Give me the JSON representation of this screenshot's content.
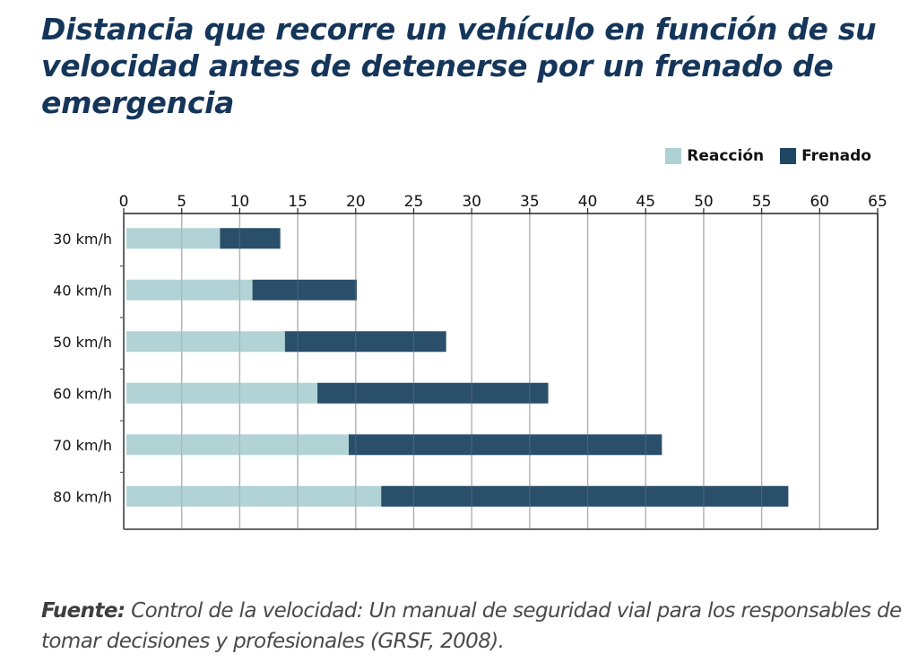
{
  "title": "Distancia que recorre un vehículo en función de su velocidad antes de detenerse por un frenado de emergencia",
  "legend": [
    {
      "label": "Reacción",
      "color": "#aed1d3"
    },
    {
      "label": "Frenado",
      "color": "#1f4663"
    }
  ],
  "source": {
    "label": "Fuente:",
    "text": " Control de la velocidad: Un manual de seguridad vial para los responsables de tomar decisiones y profesionales (GRSF, 2008)."
  },
  "chart_data": {
    "type": "bar",
    "orientation": "horizontal",
    "stacked": true,
    "title": "Distancia que recorre un vehículo en función de su velocidad antes de detenerse por un frenado de emergencia",
    "xlabel": "",
    "ylabel": "",
    "categories": [
      "30 km/h",
      "40 km/h",
      "50 km/h",
      "60 km/h",
      "70 km/h",
      "80 km/h"
    ],
    "series": [
      {
        "name": "Reacción",
        "color": "#aed1d3",
        "values": [
          8.3,
          11.1,
          13.9,
          16.7,
          19.4,
          22.2
        ]
      },
      {
        "name": "Frenado",
        "color": "#1f4663",
        "values": [
          5.2,
          9.0,
          13.9,
          19.9,
          27.0,
          35.1
        ]
      }
    ],
    "xlim": [
      0,
      65
    ],
    "xticks": [
      0,
      5,
      10,
      15,
      20,
      25,
      30,
      35,
      40,
      45,
      50,
      55,
      60,
      65
    ],
    "x_axis_position": "top",
    "grid": true,
    "legend_position": "top-right"
  }
}
